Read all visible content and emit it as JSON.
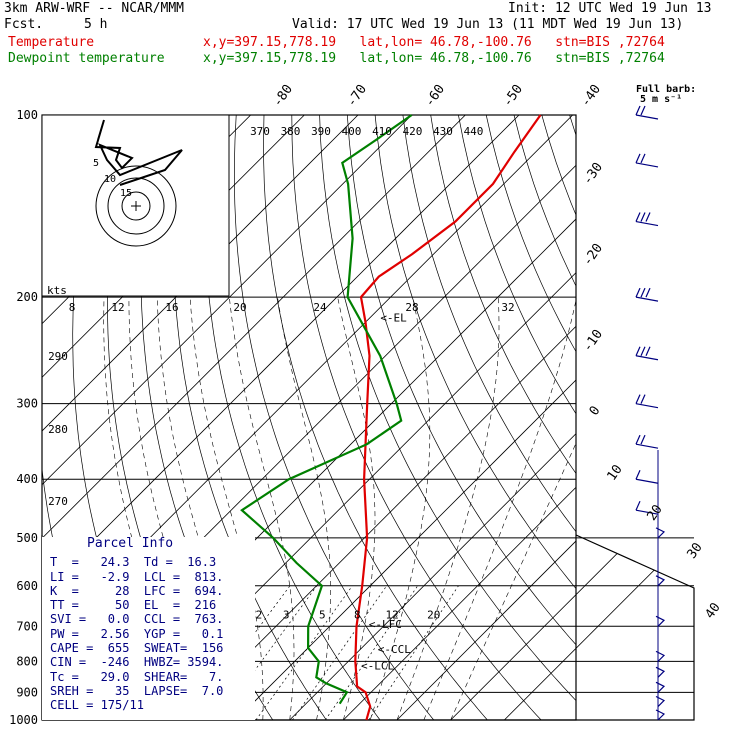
{
  "header": {
    "model": "3km ARW-WRF -- NCAR/MMM",
    "fcst_label": "Fcst.",
    "fcst_value": "5 h",
    "init": "Init: 12 UTC Wed 19 Jun 13",
    "valid": "Valid: 17 UTC Wed 19 Jun 13 (11 MDT Wed 19 Jun 13)",
    "temp_label": "Temperature",
    "temp_loc": "x,y=397.15,778.19   lat,lon= 46.78,-100.76   stn=BIS ,72764",
    "dew_label": "Dewpoint temperature",
    "dew_loc": "x,y=397.15,778.19   lat,lon= 46.78,-100.76   stn=BIS ,72764",
    "barb_title1": "Full barb:",
    "barb_title2": "5 m s⁻¹"
  },
  "colors": {
    "temperature": "#e00000",
    "dewpoint": "#008000",
    "wind": "#000080",
    "panel": "#000080"
  },
  "chart_data": {
    "type": "line",
    "title": "",
    "xlabel": "",
    "ylabel": "",
    "y_scale": "log-pressure",
    "pressure_ticks": [
      "100",
      "200",
      "300",
      "400",
      "500",
      "600",
      "700",
      "800",
      "900",
      "1000"
    ],
    "pressure_values": [
      100,
      200,
      300,
      400,
      500,
      600,
      700,
      800,
      900,
      1000
    ],
    "isotherm_labels": [
      "-80",
      "-70",
      "-60",
      "-50",
      "-40",
      "-30",
      "-20",
      "-10",
      "0",
      "10",
      "20",
      "30",
      "40"
    ],
    "theta_labels": [
      "370",
      "380",
      "390",
      "400",
      "410",
      "420",
      "430",
      "440"
    ],
    "theta_low_labels": [
      "290",
      "280",
      "270"
    ],
    "mixing_ratio_labels": [
      "2",
      "3",
      "5",
      "8",
      "12",
      "20"
    ],
    "hodograph": {
      "units_label": "kts",
      "speed_labels": [
        "8",
        "12",
        "16",
        "20",
        "24",
        "28",
        "32"
      ],
      "ring_labels": [
        "5",
        "10",
        "15"
      ]
    },
    "levels": [
      {
        "text": "<-EL",
        "p": 216
      },
      {
        "text": "<-LFC",
        "p": 694
      },
      {
        "text": "<-CCL",
        "p": 763
      },
      {
        "text": "<-LCL",
        "p": 813
      }
    ],
    "series": [
      {
        "name": "Temperature",
        "x_unit": "C",
        "points": [
          [
            1000,
            24.3
          ],
          [
            950,
            22.5
          ],
          [
            900,
            19
          ],
          [
            880,
            16.3
          ],
          [
            850,
            14.5
          ],
          [
            800,
            11.3
          ],
          [
            700,
            5
          ],
          [
            600,
            -1.5
          ],
          [
            500,
            -9.5
          ],
          [
            400,
            -21
          ],
          [
            300,
            -34.5
          ],
          [
            250,
            -43
          ],
          [
            220,
            -50
          ],
          [
            200,
            -55.5
          ],
          [
            185,
            -56
          ],
          [
            170,
            -54
          ],
          [
            150,
            -52
          ],
          [
            130,
            -52
          ],
          [
            115,
            -54
          ],
          [
            100,
            -56
          ]
        ]
      },
      {
        "name": "Dewpoint temperature",
        "x_unit": "C",
        "points": [
          [
            940,
            16.3
          ],
          [
            900,
            15.5
          ],
          [
            870,
            10
          ],
          [
            850,
            7
          ],
          [
            800,
            4.5
          ],
          [
            760,
            0
          ],
          [
            700,
            -4
          ],
          [
            600,
            -9
          ],
          [
            550,
            -18
          ],
          [
            500,
            -27
          ],
          [
            450,
            -38
          ],
          [
            400,
            -35
          ],
          [
            350,
            -27
          ],
          [
            320,
            -25
          ],
          [
            300,
            -29
          ],
          [
            250,
            -41
          ],
          [
            200,
            -58
          ],
          [
            160,
            -68
          ],
          [
            130,
            -79
          ],
          [
            120,
            -84
          ],
          [
            110,
            -82
          ],
          [
            100,
            -80
          ]
        ]
      }
    ],
    "wind_barbs": [
      {
        "p": 1000,
        "spd": "light"
      },
      {
        "p": 950,
        "spd": "light"
      },
      {
        "p": 900,
        "spd": "light"
      },
      {
        "p": 850,
        "spd": "light"
      },
      {
        "p": 800,
        "spd": "light"
      },
      {
        "p": 700,
        "spd": "light"
      },
      {
        "p": 600,
        "spd": "light"
      },
      {
        "p": 500,
        "spd": "light"
      },
      {
        "p": 450,
        "spd": "10"
      },
      {
        "p": 400,
        "spd": "10"
      },
      {
        "p": 350,
        "spd": "15"
      },
      {
        "p": 300,
        "spd": "15"
      },
      {
        "p": 250,
        "spd": "20"
      },
      {
        "p": 200,
        "spd": "20"
      },
      {
        "p": 150,
        "spd": "20"
      },
      {
        "p": 120,
        "spd": "15"
      },
      {
        "p": 100,
        "spd": "15"
      }
    ]
  },
  "parcel_info": {
    "title": "Parcel Info",
    "rows": [
      "T  =   24.3  Td =  16.3",
      "LI =   -2.9  LCL =  813.",
      "K  =     28  LFC =  694.",
      "TT =     50  EL  =  216",
      "SVI =   0.0  CCL =  763.",
      "PW =   2.56  YGP =   0.1",
      "CAPE =  655  SWEAT=  156",
      "CIN =  -246  HWBZ= 3594.",
      "Tc =   29.0  SHEAR=   7.",
      "SREH =   35  LAPSE=  7.0",
      "CELL = 175/11"
    ]
  }
}
